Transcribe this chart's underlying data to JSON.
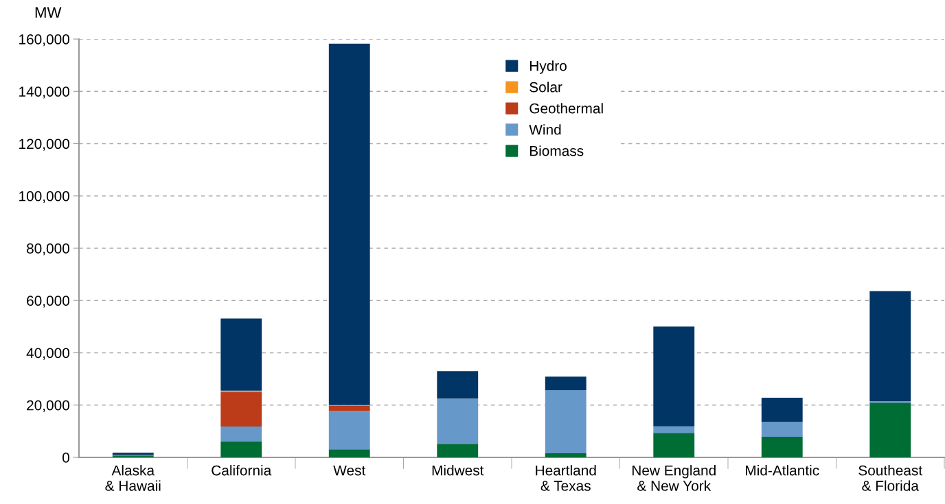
{
  "chart_data": {
    "type": "bar",
    "stacked": true,
    "ylabel": "MW",
    "categories": [
      "Alaska\n& Hawaii",
      "California",
      "West",
      "Midwest",
      "Heartland\n& Texas",
      "New England\n& New York",
      "Mid-Atlantic",
      "Southeast\n& Florida"
    ],
    "series": [
      {
        "name": "Biomass",
        "color": "#006d35",
        "values": [
          600,
          6000,
          3100,
          5200,
          1600,
          9400,
          7900,
          20900
        ]
      },
      {
        "name": "Wind",
        "color": "#6699c9",
        "values": [
          0,
          5800,
          14700,
          17300,
          24100,
          2500,
          5700,
          600
        ]
      },
      {
        "name": "Geothermal",
        "color": "#bc3b19",
        "values": [
          300,
          13100,
          1900,
          0,
          0,
          0,
          0,
          0
        ]
      },
      {
        "name": "Solar",
        "color": "#f7941d",
        "values": [
          0,
          600,
          300,
          0,
          0,
          0,
          0,
          0
        ]
      },
      {
        "name": "Hydro",
        "color": "#003566",
        "values": [
          900,
          27600,
          138200,
          10500,
          5200,
          38100,
          9200,
          42100
        ]
      }
    ],
    "ylim": [
      0,
      160000
    ],
    "yticks": [
      {
        "value": 0,
        "label": "0"
      },
      {
        "value": 20000,
        "label": "20,000"
      },
      {
        "value": 40000,
        "label": "40,000"
      },
      {
        "value": 60000,
        "label": "60,000"
      },
      {
        "value": 80000,
        "label": "80,000"
      },
      {
        "value": 100000,
        "label": "100,000"
      },
      {
        "value": 120000,
        "label": "120,000"
      },
      {
        "value": 140000,
        "label": "140,000"
      },
      {
        "value": 160000,
        "label": "160,000"
      }
    ],
    "grid": "y",
    "legend": "top"
  }
}
